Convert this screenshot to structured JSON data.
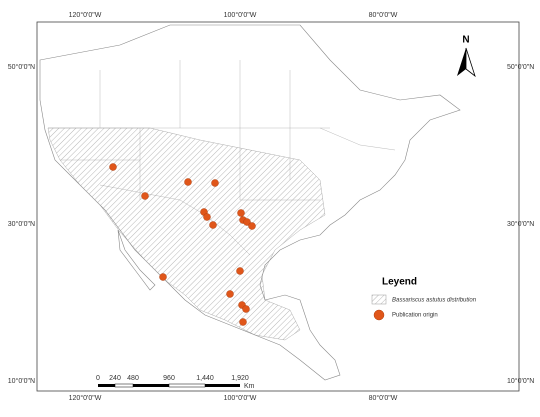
{
  "graticule": {
    "top": [
      "120°0'0\"W",
      "100°0'0\"W",
      "80°0'0\"W"
    ],
    "bottom": [
      "120°0'0\"W",
      "100°0'0\"W",
      "80°0'0\"W"
    ],
    "left": [
      "50°0'0\"N",
      "30°0'0\"N",
      "10°0'0\"N"
    ],
    "right": [
      "50°0'0\"N",
      "30°0'0\"N",
      "10°0'0\"N"
    ]
  },
  "north": "N",
  "scale_bar": {
    "labels": [
      "0",
      "240",
      "480",
      "960",
      "1,440",
      "1,920"
    ],
    "unit": "Km"
  },
  "legend": {
    "title": "Leyend",
    "items": [
      "Bassariscus astutus distribution",
      "Publication origin"
    ]
  }
}
